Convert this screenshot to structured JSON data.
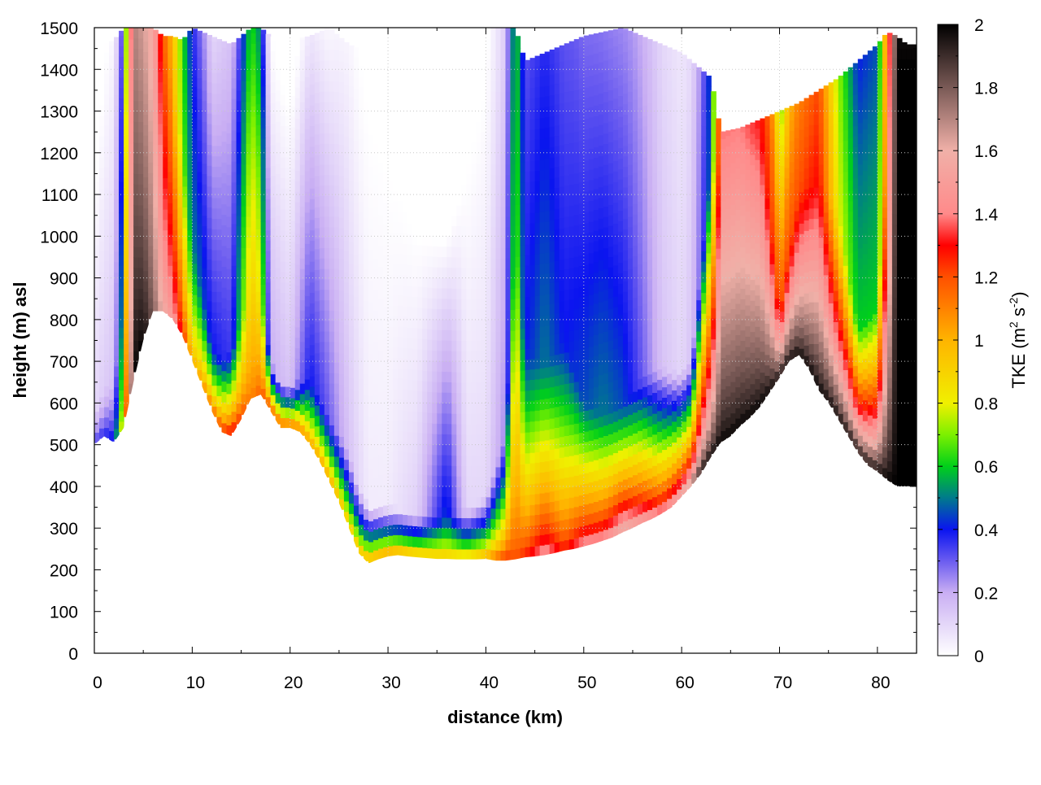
{
  "chart_data": {
    "type": "heatmap",
    "xlabel": "distance (km)",
    "ylabel": "height (m) asl",
    "xlim": [
      0,
      84
    ],
    "ylim": [
      0,
      1500
    ],
    "x_ticks": [
      0,
      10,
      20,
      30,
      40,
      50,
      60,
      70,
      80
    ],
    "y_ticks": [
      0,
      100,
      200,
      300,
      400,
      500,
      600,
      700,
      800,
      900,
      1000,
      1100,
      1200,
      1300,
      1400,
      1500
    ],
    "grid": true,
    "colorbar": {
      "label": "TKE (m",
      "label_sup1": "2",
      "label_mid": " s",
      "label_sup2": "-2",
      "label_end": ")",
      "range": [
        0,
        2
      ],
      "ticks": [
        "0",
        "0.2",
        "0.4",
        "0.6",
        "0.8",
        "1",
        "1.2",
        "1.4",
        "1.6",
        "1.8",
        "2"
      ],
      "stops": [
        {
          "v": 0.0,
          "c": "#ffffff"
        },
        {
          "v": 0.2,
          "c": "#c9aef3"
        },
        {
          "v": 0.3,
          "c": "#6b5cf0"
        },
        {
          "v": 0.4,
          "c": "#0a14f0"
        },
        {
          "v": 0.5,
          "c": "#007a8c"
        },
        {
          "v": 0.6,
          "c": "#00d01a"
        },
        {
          "v": 0.7,
          "c": "#7cf000"
        },
        {
          "v": 0.8,
          "c": "#f0f000"
        },
        {
          "v": 1.0,
          "c": "#ffb400"
        },
        {
          "v": 1.2,
          "c": "#ff5000"
        },
        {
          "v": 1.3,
          "c": "#ff0000"
        },
        {
          "v": 1.4,
          "c": "#ff8a8a"
        },
        {
          "v": 1.6,
          "c": "#f0b0a8"
        },
        {
          "v": 1.8,
          "c": "#7a5a56"
        },
        {
          "v": 2.0,
          "c": "#000000"
        }
      ]
    },
    "terrain": {
      "x": [
        0,
        1,
        2,
        3,
        4,
        5,
        6,
        7,
        8,
        9,
        10,
        11,
        12,
        13,
        14,
        15,
        16,
        17,
        18,
        19,
        20,
        21,
        22,
        23,
        24,
        25,
        26,
        27,
        28,
        29,
        30,
        31,
        32,
        33,
        34,
        35,
        36,
        37,
        38,
        39,
        40,
        41,
        42,
        43,
        44,
        45,
        46,
        47,
        48,
        49,
        50,
        51,
        52,
        53,
        54,
        55,
        56,
        57,
        58,
        59,
        60,
        61,
        62,
        63,
        64,
        65,
        66,
        67,
        68,
        69,
        70,
        71,
        72,
        73,
        74,
        75,
        76,
        77,
        78,
        79,
        80,
        81,
        82,
        83,
        84
      ],
      "height": [
        500,
        520,
        505,
        540,
        650,
        750,
        820,
        820,
        800,
        760,
        700,
        640,
        580,
        530,
        520,
        560,
        610,
        620,
        580,
        540,
        540,
        530,
        500,
        460,
        410,
        360,
        300,
        240,
        215,
        225,
        232,
        235,
        232,
        230,
        228,
        226,
        226,
        225,
        225,
        225,
        226,
        222,
        222,
        225,
        230,
        232,
        235,
        240,
        246,
        250,
        256,
        262,
        270,
        278,
        290,
        300,
        312,
        322,
        335,
        350,
        375,
        400,
        430,
        470,
        505,
        520,
        545,
        565,
        590,
        625,
        660,
        700,
        715,
        680,
        630,
        600,
        560,
        520,
        480,
        450,
        435,
        415,
        400,
        400,
        400
      ]
    },
    "tke_field": {
      "x": [
        0,
        2,
        3,
        4,
        5,
        6,
        7,
        8,
        9,
        10,
        12,
        14,
        16,
        17,
        18,
        20,
        22,
        24,
        26,
        28,
        30,
        33,
        36,
        38,
        40,
        42,
        43,
        44,
        46,
        48,
        50,
        52,
        54,
        56,
        58,
        60,
        61,
        62,
        63,
        64,
        66,
        68,
        70,
        72,
        74,
        76,
        78,
        80,
        81,
        82,
        83,
        84
      ],
      "surface_tke": [
        0.35,
        0.45,
        0.9,
        2.0,
        2.0,
        1.8,
        1.6,
        1.5,
        1.3,
        1.0,
        1.2,
        1.4,
        1.1,
        1.2,
        1.3,
        1.3,
        1.1,
        1.1,
        1.0,
        1.1,
        1.2,
        1.1,
        1.0,
        1.0,
        1.1,
        1.3,
        1.2,
        1.3,
        1.5,
        1.3,
        1.5,
        1.5,
        1.7,
        1.6,
        1.5,
        1.7,
        1.8,
        2.0,
        2.0,
        2.0,
        2.0,
        2.0,
        2.0,
        2.0,
        2.0,
        2.0,
        2.0,
        2.0,
        2.0,
        2.0,
        2.0,
        2.0
      ],
      "depth_m": [
        80,
        150,
        300,
        900,
        900,
        800,
        650,
        600,
        450,
        300,
        150,
        200,
        300,
        250,
        120,
        100,
        150,
        150,
        180,
        140,
        120,
        100,
        100,
        120,
        150,
        300,
        800,
        500,
        450,
        500,
        350,
        300,
        300,
        350,
        350,
        300,
        300,
        500,
        700,
        700,
        700,
        700,
        150,
        400,
        500,
        500,
        300,
        400,
        800,
        1000,
        1000,
        1000
      ],
      "upper_tke": [
        0.1,
        0.15,
        0.6,
        1.7,
        1.6,
        1.5,
        1.2,
        1.0,
        0.7,
        0.5,
        0.4,
        0.35,
        0.9,
        0.8,
        0.2,
        0.15,
        0.4,
        0.3,
        0.15,
        0.05,
        0.05,
        0.12,
        0.45,
        0.1,
        0.1,
        0.25,
        0.7,
        0.4,
        0.5,
        0.4,
        0.45,
        0.5,
        0.45,
        0.3,
        0.15,
        0.1,
        0.15,
        0.3,
        0.5,
        1.4,
        1.4,
        1.3,
        1.2,
        1.2,
        1.3,
        0.8,
        0.6,
        0.6,
        1.2,
        2.0,
        2.0,
        2.0
      ],
      "top_height": [
        1450,
        1470,
        1500,
        1500,
        1500,
        1500,
        1480,
        1480,
        1470,
        1500,
        1480,
        1460,
        1500,
        1500,
        1480,
        1470,
        1480,
        1500,
        1460,
        1440,
        1500,
        1500,
        1500,
        1500,
        1500,
        1500,
        1500,
        1420,
        1440,
        1460,
        1480,
        1490,
        1500,
        1480,
        1460,
        1440,
        1420,
        1400,
        1380,
        1250,
        1260,
        1280,
        1300,
        1320,
        1350,
        1380,
        1420,
        1460,
        1490,
        1480,
        1460,
        1460
      ]
    }
  }
}
